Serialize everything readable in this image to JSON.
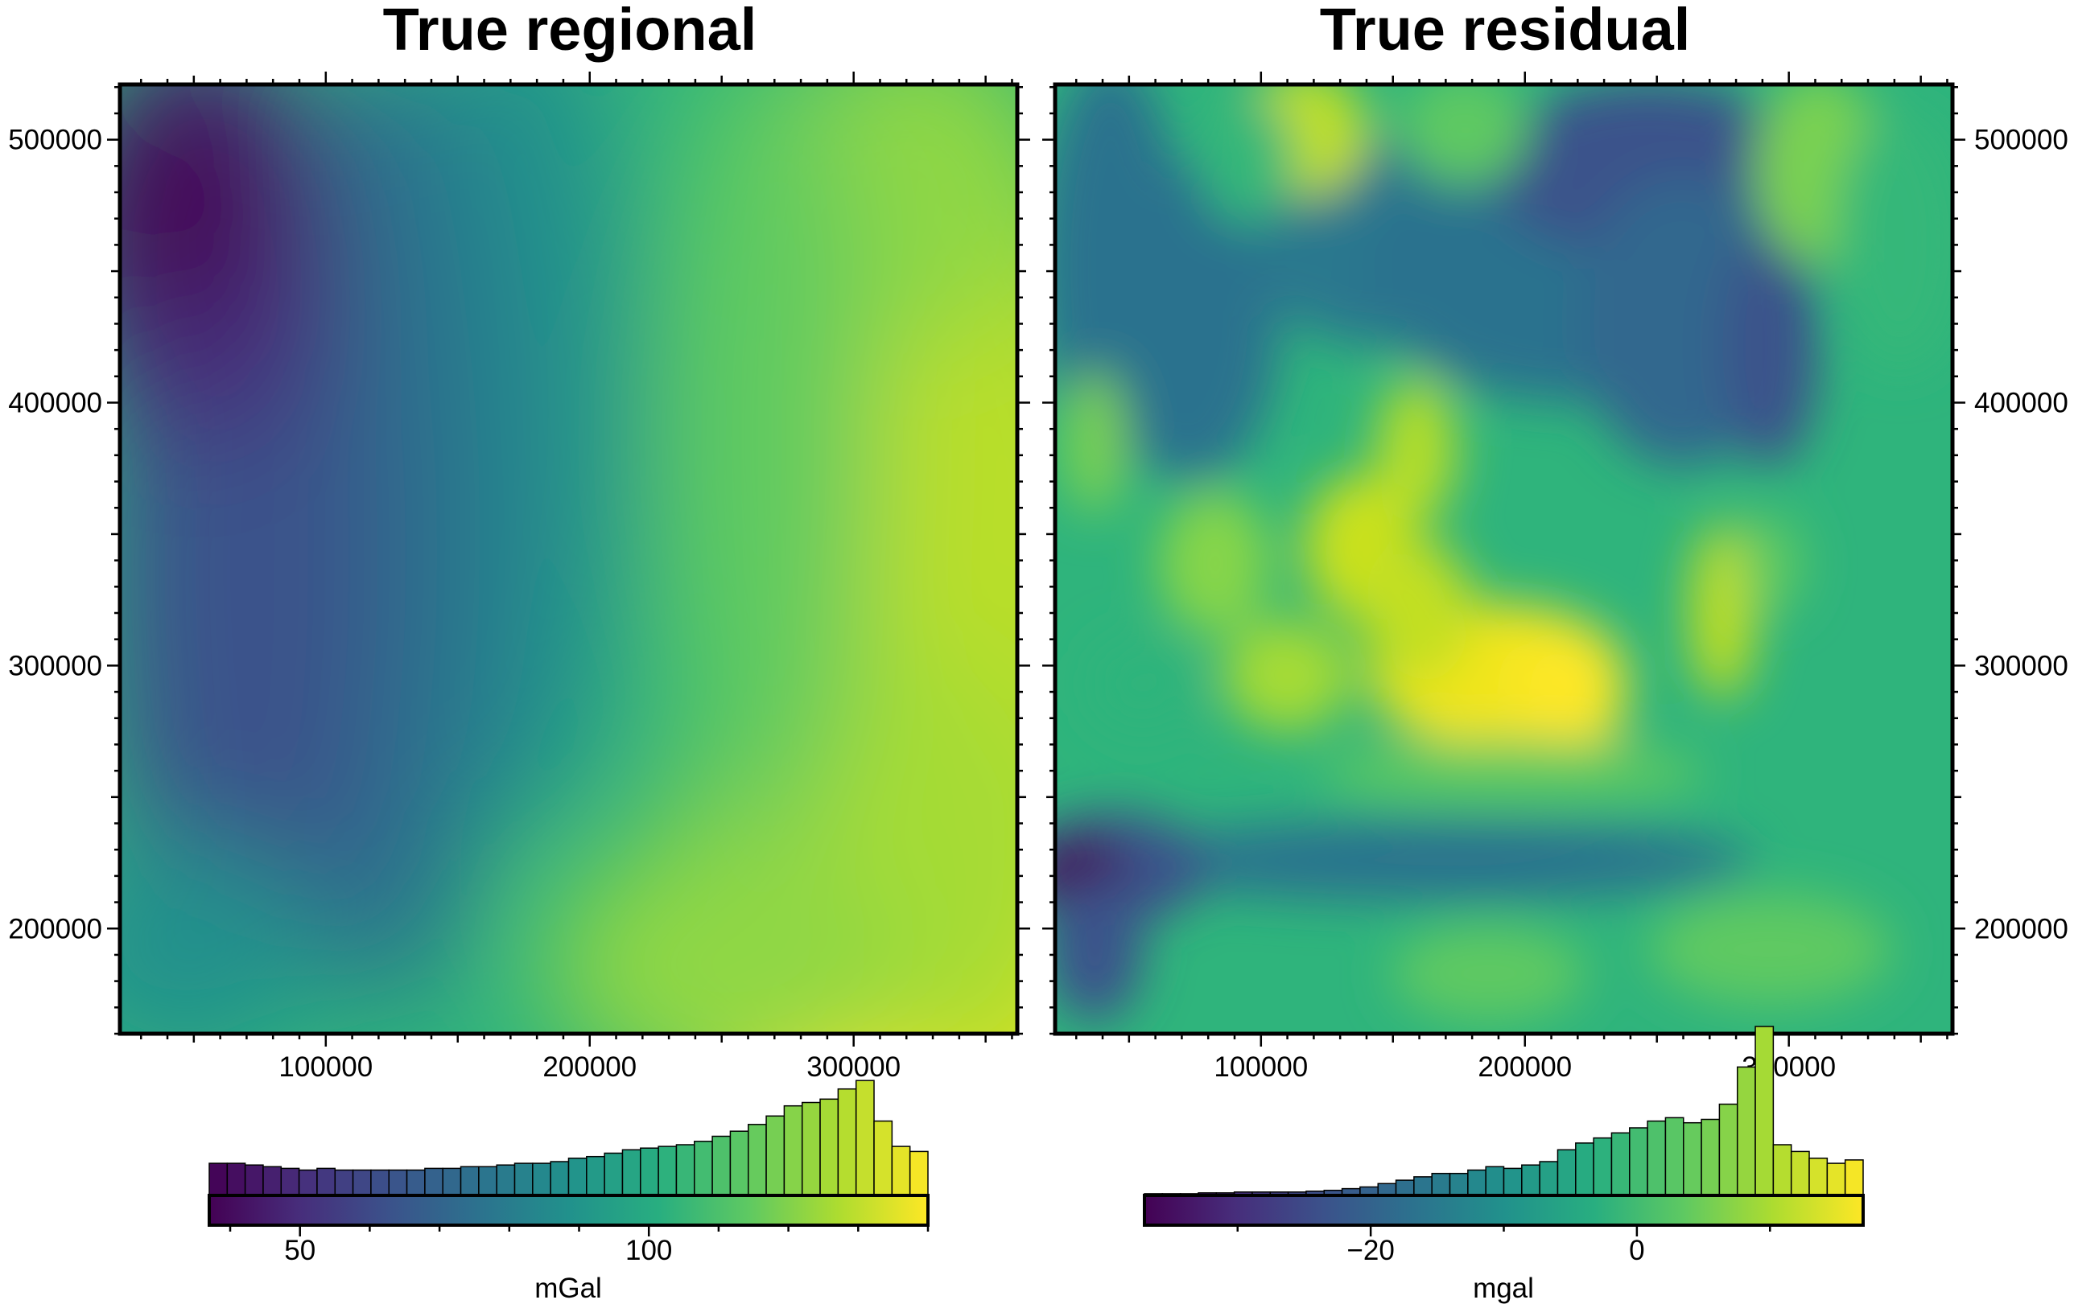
{
  "chart_data": [
    {
      "type": "heatmap",
      "title": "True regional",
      "colormap": "viridis",
      "x_ticks": [
        100000,
        200000,
        300000
      ],
      "x_tick_labels": [
        "100000",
        "200000",
        "300000"
      ],
      "y_ticks": [
        200000,
        300000,
        400000,
        500000
      ],
      "y_tick_labels": [
        "200000",
        "300000",
        "400000",
        "500000"
      ],
      "xlim": [
        22000,
        362000
      ],
      "ylim": [
        160000,
        521000
      ],
      "y_axis_side": "left",
      "colorbar": {
        "label": "mGal",
        "range": [
          37,
          140
        ],
        "tick_values": [
          50,
          100
        ],
        "tick_labels": [
          "50",
          "100"
        ],
        "histogram_bins": 40,
        "histogram_counts": [
          0.19,
          0.19,
          0.18,
          0.17,
          0.16,
          0.15,
          0.16,
          0.15,
          0.15,
          0.15,
          0.15,
          0.15,
          0.16,
          0.16,
          0.17,
          0.17,
          0.18,
          0.19,
          0.19,
          0.2,
          0.22,
          0.23,
          0.25,
          0.27,
          0.28,
          0.29,
          0.3,
          0.32,
          0.35,
          0.38,
          0.42,
          0.47,
          0.53,
          0.55,
          0.57,
          0.63,
          0.68,
          0.44,
          0.29,
          0.26
        ]
      }
    },
    {
      "type": "heatmap",
      "title": "True residual",
      "colormap": "viridis",
      "x_ticks": [
        100000,
        200000,
        300000
      ],
      "x_tick_labels": [
        "100000",
        "200000",
        "300000"
      ],
      "y_ticks": [
        200000,
        300000,
        400000,
        500000
      ],
      "y_tick_labels": [
        "200000",
        "300000",
        "400000",
        "500000"
      ],
      "xlim": [
        22000,
        362000
      ],
      "ylim": [
        160000,
        521000
      ],
      "y_axis_side": "right",
      "colorbar": {
        "label": "mgal",
        "range": [
          -37,
          17
        ],
        "tick_values": [
          -20,
          0
        ],
        "tick_labels": [
          "−20",
          "0"
        ],
        "histogram_bins": 40,
        "histogram_counts": [
          0.01,
          0.01,
          0.01,
          0.015,
          0.015,
          0.02,
          0.02,
          0.02,
          0.02,
          0.025,
          0.03,
          0.04,
          0.05,
          0.07,
          0.09,
          0.11,
          0.13,
          0.13,
          0.15,
          0.17,
          0.16,
          0.18,
          0.2,
          0.27,
          0.31,
          0.34,
          0.37,
          0.4,
          0.44,
          0.46,
          0.43,
          0.45,
          0.54,
          0.76,
          1.0,
          0.3,
          0.26,
          0.22,
          0.19,
          0.21
        ]
      }
    }
  ]
}
